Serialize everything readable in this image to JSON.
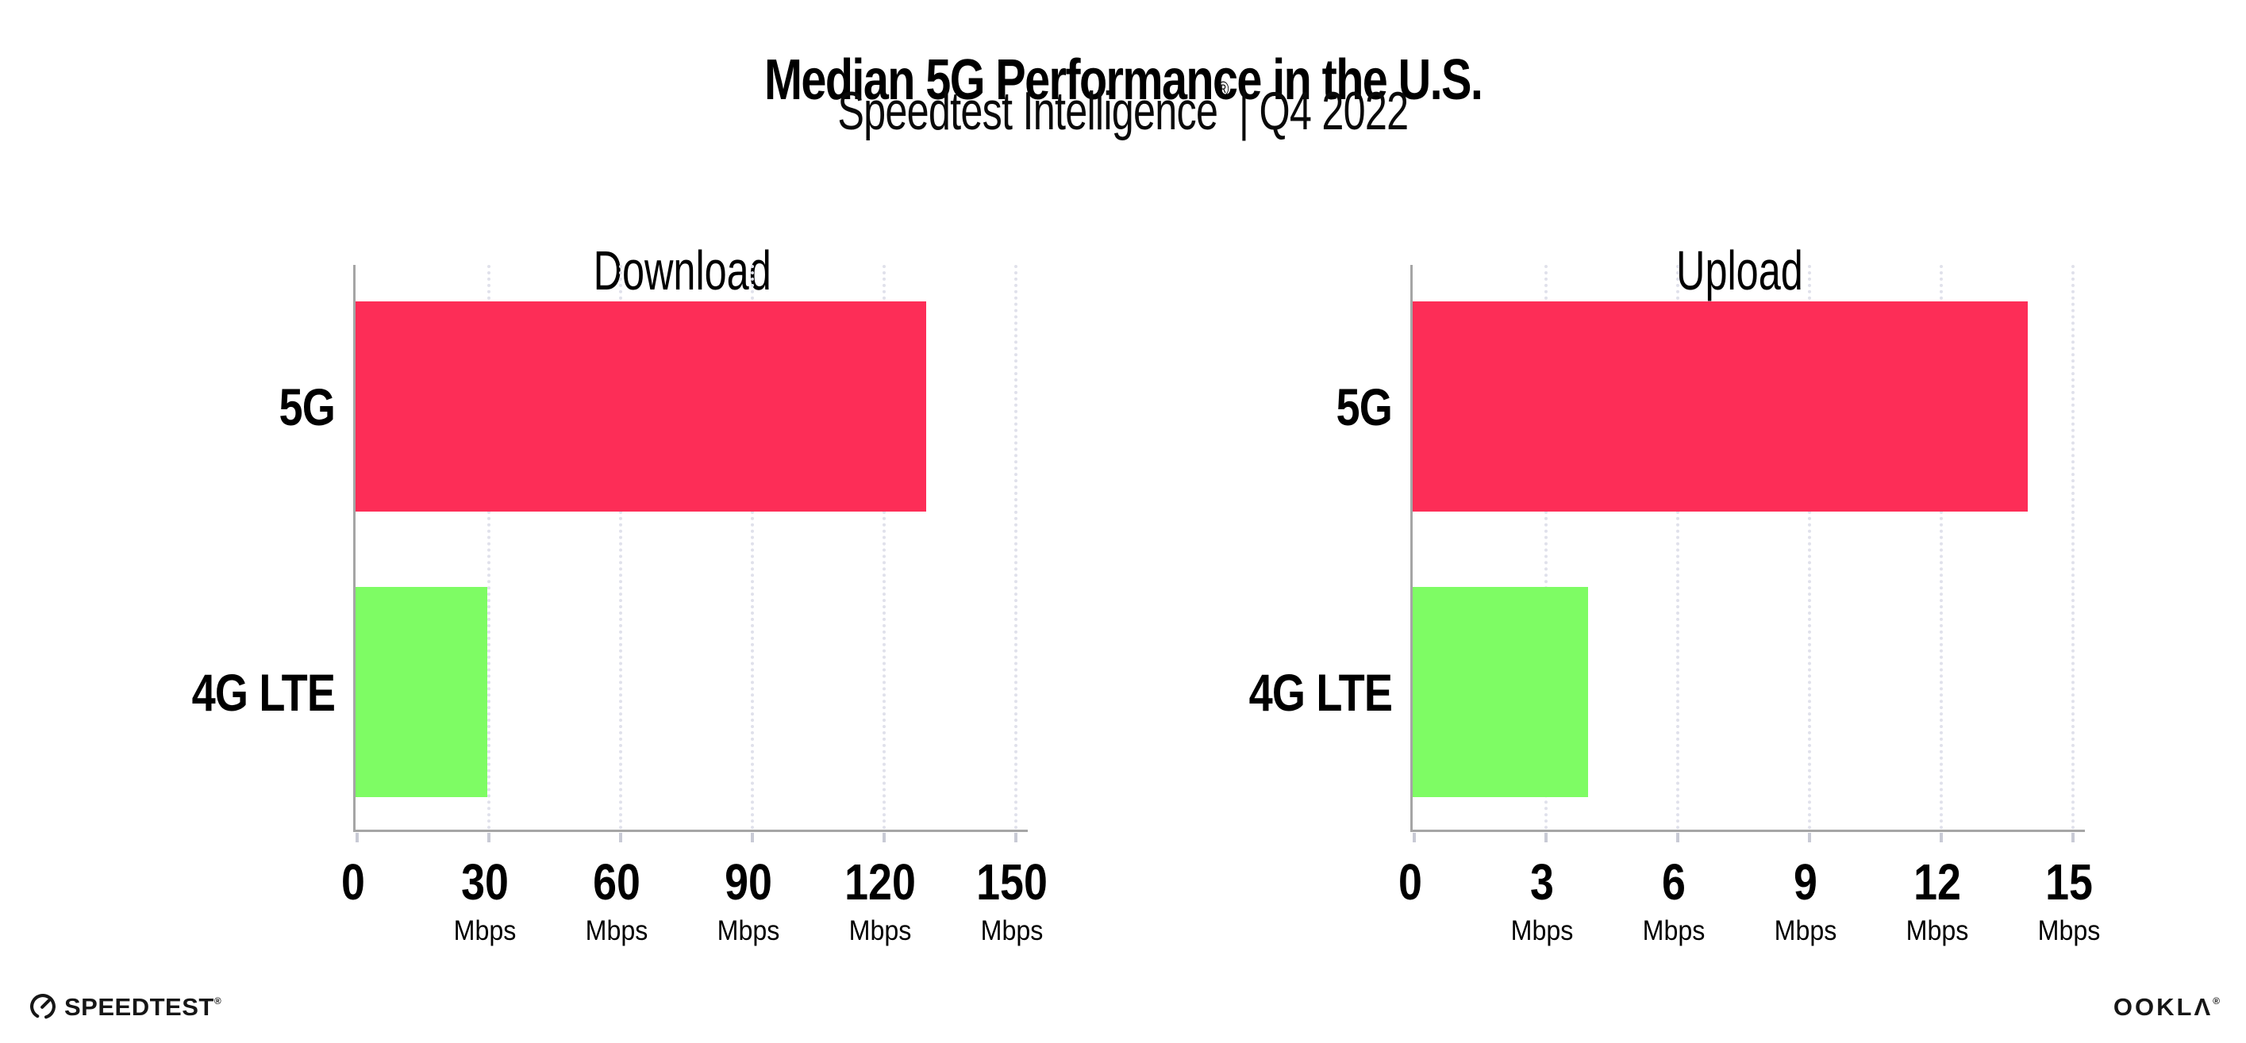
{
  "header": {
    "title": "Median 5G Performance in the U.S.",
    "subtitle_brand": "Speedtest Intelligence",
    "subtitle_reg": "®",
    "subtitle_rest": " | Q4 2022"
  },
  "chart_data": [
    {
      "type": "bar",
      "orientation": "horizontal",
      "title": "Download",
      "categories": [
        "5G",
        "4G LTE"
      ],
      "values": [
        130,
        30
      ],
      "unit": "Mbps",
      "xlim": [
        0,
        150
      ],
      "xticks": [
        0,
        30,
        60,
        90,
        120,
        150
      ],
      "grid": "dotted-vertical",
      "legend": "none",
      "bar_colors": [
        "#FD2D57",
        "#7EFC64"
      ]
    },
    {
      "type": "bar",
      "orientation": "horizontal",
      "title": "Upload",
      "categories": [
        "5G",
        "4G LTE"
      ],
      "values": [
        14,
        4
      ],
      "unit": "Mbps",
      "xlim": [
        0,
        15
      ],
      "xticks": [
        0,
        3,
        6,
        9,
        12,
        15
      ],
      "grid": "dotted-vertical",
      "legend": "none",
      "bar_colors": [
        "#FD2D57",
        "#7EFC64"
      ]
    }
  ],
  "colors": {
    "bar_5g": "#FD2D57",
    "bar_4g_lte": "#7EFC64",
    "axis": "#A5A5A5",
    "gridline": "#E0E1EB",
    "tick": "#C8CAD5",
    "background": "#FFFFFF",
    "text": "#000000"
  },
  "footer": {
    "speedtest_label": "SPEEDTEST",
    "speedtest_reg": "®",
    "ookla_label": "OOKLΛ",
    "ookla_reg": "®"
  }
}
